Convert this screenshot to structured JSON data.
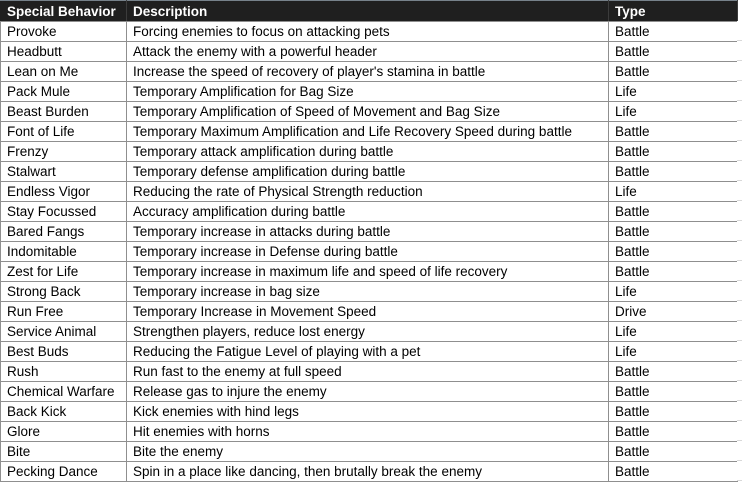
{
  "table": {
    "columns": [
      "Special Behavior",
      "Description",
      "Type"
    ],
    "rows": [
      [
        "Provoke",
        "Forcing enemies to focus on attacking pets",
        "Battle"
      ],
      [
        "Headbutt",
        "Attack the enemy with a powerful header",
        "Battle"
      ],
      [
        "Lean on Me",
        "Increase the speed of recovery of player's stamina in battle",
        "Battle"
      ],
      [
        "Pack Mule",
        "Temporary Amplification for Bag Size",
        "Life"
      ],
      [
        "Beast Burden",
        "Temporary Amplification of Speed of Movement and Bag Size",
        "Life"
      ],
      [
        "Font of Life",
        "Temporary Maximum Amplification and Life Recovery Speed during battle",
        "Battle"
      ],
      [
        "Frenzy",
        "Temporary attack amplification during battle",
        "Battle"
      ],
      [
        "Stalwart",
        "Temporary defense amplification during battle",
        "Battle"
      ],
      [
        "Endless Vigor",
        "Reducing the rate of Physical Strength reduction",
        "Life"
      ],
      [
        "Stay Focussed",
        "Accuracy amplification during battle",
        "Battle"
      ],
      [
        "Bared Fangs",
        "Temporary increase in attacks during battle",
        "Battle"
      ],
      [
        "Indomitable",
        "Temporary increase in Defense during battle",
        "Battle"
      ],
      [
        "Zest for Life",
        "Temporary increase in maximum life and speed of life recovery",
        "Battle"
      ],
      [
        "Strong Back",
        "Temporary increase in bag size",
        "Life"
      ],
      [
        "Run Free",
        "Temporary Increase in Movement Speed",
        "Drive"
      ],
      [
        "Service Animal",
        "Strengthen players, reduce lost energy",
        "Life"
      ],
      [
        "Best Buds",
        "Reducing the Fatigue Level of playing with a pet",
        "Life"
      ],
      [
        "Rush",
        "Run fast to the enemy at full speed",
        "Battle"
      ],
      [
        "Chemical Warfare",
        "Release gas to injure the enemy",
        "Battle"
      ],
      [
        "Back Kick",
        "Kick enemies with hind legs",
        "Battle"
      ],
      [
        "Glore",
        "Hit enemies with horns",
        "Battle"
      ],
      [
        "Bite",
        "Bite the enemy",
        "Battle"
      ],
      [
        "Pecking Dance",
        "Spin in a place like dancing, then brutally break the enemy",
        "Battle"
      ]
    ]
  },
  "colors": {
    "header_bg": "#1f1f1f",
    "header_text": "#ffffff",
    "grid": "#8f8f8f",
    "header_divider": "#3b3b3b",
    "body_text": "#000000",
    "light_grid": "#d9d9d9",
    "row_bg": "#ffffff"
  }
}
